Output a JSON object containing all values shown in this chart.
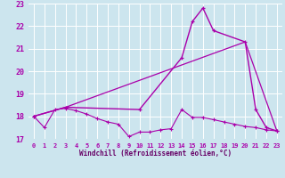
{
  "background_color": "#cce5ee",
  "grid_color": "#ffffff",
  "line_color": "#aa00aa",
  "xlabel": "Windchill (Refroidissement éolien,°C)",
  "xlabel_color": "#660066",
  "xlim": [
    -0.5,
    23.5
  ],
  "ylim": [
    17.0,
    23.0
  ],
  "yticks": [
    17,
    18,
    19,
    20,
    21,
    22,
    23
  ],
  "xticks": [
    0,
    1,
    2,
    3,
    4,
    5,
    6,
    7,
    8,
    9,
    10,
    11,
    12,
    13,
    14,
    15,
    16,
    17,
    18,
    19,
    20,
    21,
    22,
    23
  ],
  "series1_x": [
    0,
    1,
    2,
    3,
    4,
    5,
    6,
    7,
    8,
    9,
    10,
    11,
    12,
    13,
    14,
    15,
    16,
    17,
    18,
    19,
    20,
    21,
    22,
    23
  ],
  "series1_y": [
    18.0,
    17.5,
    18.3,
    18.35,
    18.25,
    18.1,
    17.9,
    17.75,
    17.65,
    17.1,
    17.3,
    17.3,
    17.4,
    17.45,
    18.3,
    17.95,
    17.95,
    17.85,
    17.75,
    17.65,
    17.55,
    17.5,
    17.4,
    17.35
  ],
  "series2_x": [
    0,
    3,
    10,
    14,
    15,
    16,
    17,
    20,
    21,
    22,
    23
  ],
  "series2_y": [
    18.0,
    18.4,
    18.3,
    20.6,
    22.2,
    22.8,
    21.8,
    21.3,
    18.3,
    17.5,
    17.35
  ],
  "series3_x": [
    0,
    3,
    20,
    23
  ],
  "series3_y": [
    18.0,
    18.4,
    21.3,
    17.35
  ]
}
